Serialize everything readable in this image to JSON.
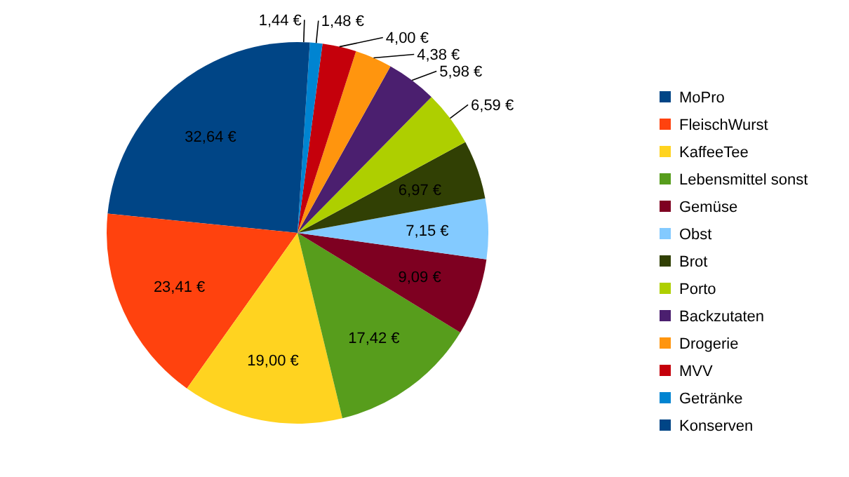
{
  "chart_data": {
    "type": "pie",
    "categories": [
      "MoPro",
      "FleischWurst",
      "KaffeeTee",
      "Lebensmittel sonst",
      "Gemüse",
      "Obst",
      "Brot",
      "Porto",
      "Backzutaten",
      "Drogerie",
      "MVV",
      "Getränke",
      "Konserven"
    ],
    "values": [
      32.64,
      23.41,
      19.0,
      17.42,
      9.09,
      7.15,
      6.97,
      6.59,
      5.98,
      4.38,
      4.0,
      1.48,
      1.44
    ],
    "value_labels": [
      "32,64 €",
      "23,41 €",
      "19,00 €",
      "17,42 €",
      "9,09 €",
      "7,15 €",
      "6,97 €",
      "6,59 €",
      "5,98 €",
      "4,38 €",
      "4,00 €",
      "1,48 €",
      "1,44 €"
    ],
    "colors": [
      "#004586",
      "#ff420e",
      "#ffd320",
      "#579d1c",
      "#7e0021",
      "#83caff",
      "#314004",
      "#aecf00",
      "#4b1f6f",
      "#ff950e",
      "#c5000b",
      "#0084d1",
      "#004586"
    ],
    "legend": "right"
  }
}
